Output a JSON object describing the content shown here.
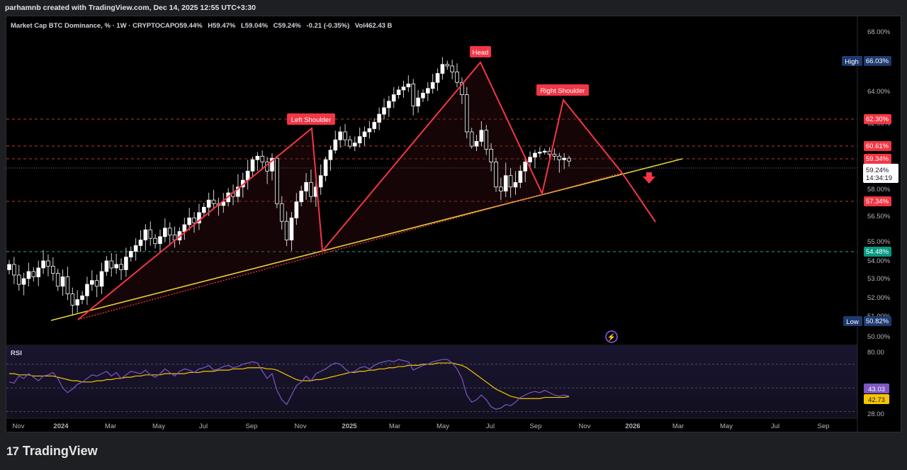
{
  "header": {
    "attribution": "parhamnb created with TradingView.com, Dec 14, 2025 12:55 UTC+3:30",
    "legend_symbol": "Market Cap BTC Dominance, % · 1W · CRYPTOCAP",
    "legend_o": "O59.44%",
    "legend_h": "H59.47%",
    "legend_l": "L59.04%",
    "legend_c": "C59.24%",
    "legend_change": "-0.21 (-0.35%)",
    "legend_vol": "Vol462.43 B"
  },
  "pane_label_rsi": "RSI",
  "brand": {
    "name": "TradingView",
    "mark": "17"
  },
  "colors": {
    "up": "#ffffff",
    "down": "#ffffff",
    "pattern": "#f23645",
    "trend": "#e6d23a",
    "rsi": "#7e57c2",
    "rsi_ma": "#f7c600",
    "support": "#26a69a"
  },
  "chart_data": [
    {
      "type": "candlestick",
      "title": "Market Cap BTC Dominance, % · 1W · CRYPTOCAP",
      "ylim": [
        50.0,
        68.0
      ],
      "y_ticks": [
        "68.00%",
        "64.00%",
        "62.00%",
        "59.34%",
        "58.00%",
        "56.50%",
        "55.00%",
        "54.00%",
        "53.00%",
        "52.00%",
        "51.00%",
        "50.00%"
      ],
      "x_ticks": [
        "Nov",
        "2024",
        "Mar",
        "May",
        "Jul",
        "Sep",
        "Nov",
        "2025",
        "Mar",
        "May",
        "Jul",
        "Sep",
        "Nov",
        "2026",
        "Mar",
        "May",
        "Jul",
        "Sep"
      ],
      "price_labels": {
        "high": {
          "label": "High",
          "value": "66.03%"
        },
        "low": {
          "label": "Low",
          "value": "50.82%"
        },
        "levels": [
          "62.30%",
          "60.61%",
          "59.34%",
          "57.34%",
          "54.48%"
        ],
        "current": {
          "value": "59.24%",
          "countdown": "14:34:19"
        }
      },
      "annotations": [
        "Left Shoulder",
        "Head",
        "Right Shoulder"
      ],
      "close_series": [
        53.8,
        53.2,
        52.7,
        53.0,
        53.4,
        53.1,
        53.6,
        54.0,
        53.7,
        53.3,
        52.6,
        53.1,
        52.2,
        51.6,
        51.9,
        52.1,
        52.7,
        52.9,
        52.6,
        53.4,
        54.0,
        53.6,
        53.8,
        53.5,
        54.2,
        54.5,
        54.8,
        55.1,
        55.7,
        55.2,
        54.9,
        55.3,
        55.8,
        55.4,
        55.1,
        55.6,
        56.0,
        56.4,
        56.1,
        56.7,
        57.0,
        57.4,
        57.2,
        57.1,
        57.3,
        57.8,
        57.6,
        58.1,
        58.4,
        58.8,
        59.3,
        59.6,
        59.2,
        58.8,
        59.4,
        57.2,
        56.2,
        55.1,
        56.4,
        57.3,
        57.9,
        58.3,
        57.6,
        58.1,
        58.6,
        59.3,
        60.2,
        61.0,
        61.5,
        61.0,
        60.6,
        60.8,
        61.2,
        61.5,
        61.7,
        62.1,
        62.6,
        63.0,
        63.4,
        63.8,
        64.1,
        64.3,
        64.5,
        63.1,
        63.6,
        63.9,
        64.2,
        64.6,
        65.2,
        65.8,
        65.7,
        65.3,
        64.6,
        63.8,
        61.5,
        60.6,
        60.9,
        61.6,
        60.3,
        59.2,
        58.1,
        57.9,
        58.6,
        58.1,
        58.3,
        58.8,
        59.2,
        59.5,
        59.9,
        60.0,
        60.1,
        59.8,
        59.6,
        59.3,
        59.4,
        59.24
      ]
    },
    {
      "type": "line",
      "title": "RSI",
      "ylim": [
        28.0,
        80.0
      ],
      "y_ticks": [
        "80.00",
        "28.00"
      ],
      "series": [
        {
          "name": "RSI",
          "last": "43.03",
          "values": [
            55,
            54,
            60,
            58,
            62,
            59,
            56,
            60,
            61,
            63,
            58,
            50,
            46,
            49,
            53,
            55,
            58,
            61,
            60,
            62,
            64,
            60,
            63,
            58,
            61,
            64,
            63,
            62,
            65,
            61,
            59,
            62,
            66,
            63,
            60,
            64,
            66,
            65,
            63,
            66,
            67,
            69,
            65,
            66,
            68,
            69,
            67,
            68,
            70,
            71,
            72,
            71,
            64,
            58,
            62,
            48,
            40,
            36,
            44,
            52,
            55,
            60,
            56,
            62,
            64,
            66,
            69,
            71,
            70,
            66,
            63,
            64,
            67,
            68,
            66,
            69,
            71,
            72,
            73,
            72,
            74,
            73,
            72,
            65,
            67,
            69,
            70,
            72,
            73,
            74,
            74,
            71,
            66,
            58,
            44,
            38,
            40,
            44,
            40,
            34,
            32,
            33,
            36,
            35,
            38,
            42,
            44,
            46,
            47,
            46,
            48,
            46,
            44,
            43,
            44,
            43.03
          ]
        },
        {
          "name": "RSI-based MA",
          "last": "42.73",
          "values": [
            62,
            62,
            61,
            61,
            61,
            60,
            60,
            60,
            60,
            60,
            59,
            58,
            57,
            56,
            56,
            55,
            55,
            55,
            56,
            56,
            57,
            57,
            58,
            58,
            59,
            59,
            60,
            60,
            61,
            61,
            61,
            61,
            62,
            62,
            62,
            62,
            62,
            63,
            63,
            63,
            64,
            64,
            64,
            65,
            65,
            65,
            66,
            66,
            66,
            67,
            67,
            67,
            67,
            66,
            66,
            65,
            63,
            61,
            59,
            57,
            56,
            56,
            56,
            57,
            57,
            58,
            59,
            60,
            61,
            62,
            63,
            63,
            64,
            64,
            65,
            65,
            66,
            66,
            67,
            67,
            68,
            68,
            69,
            69,
            69,
            70,
            70,
            70,
            71,
            71,
            71,
            71,
            70,
            69,
            67,
            64,
            61,
            58,
            55,
            52,
            49,
            47,
            45,
            43,
            42,
            41,
            41,
            41,
            41,
            41,
            42,
            42,
            42,
            42,
            42,
            42.73
          ]
        }
      ]
    }
  ]
}
